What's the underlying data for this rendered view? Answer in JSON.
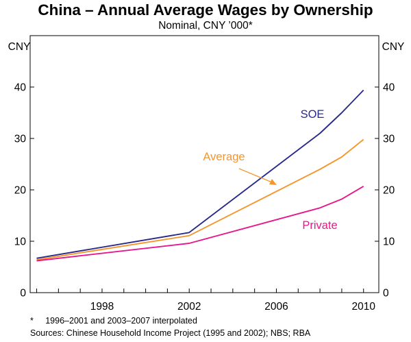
{
  "chart_data": {
    "type": "line",
    "title": "China – Annual Average Wages by Ownership",
    "subtitle": "Nominal, CNY ’000*",
    "ylabel_left": "CNY",
    "ylabel_right": "CNY",
    "xlim": [
      1994.7,
      2010.7
    ],
    "ylim": [
      0,
      50
    ],
    "x_ticks": [
      1998,
      2002,
      2006,
      2010
    ],
    "y_ticks": [
      0,
      10,
      20,
      30,
      40
    ],
    "gridlines": false,
    "series": [
      {
        "name": "SOE",
        "color": "#2a2a8a",
        "points": [
          [
            1995,
            6.7
          ],
          [
            2002,
            11.7
          ],
          [
            2008,
            31.0
          ],
          [
            2009,
            35.0
          ],
          [
            2010,
            39.4
          ]
        ]
      },
      {
        "name": "Average",
        "color": "#f4962d",
        "points": [
          [
            1995,
            6.4
          ],
          [
            2002,
            11.1
          ],
          [
            2008,
            24.0
          ],
          [
            2009,
            26.4
          ],
          [
            2010,
            29.8
          ]
        ]
      },
      {
        "name": "Private",
        "color": "#e6188c",
        "points": [
          [
            1995,
            6.2
          ],
          [
            2002,
            9.6
          ],
          [
            2008,
            16.5
          ],
          [
            2009,
            18.2
          ],
          [
            2010,
            20.7
          ]
        ]
      }
    ],
    "labels": {
      "soe": "SOE",
      "average": "Average",
      "private": "Private"
    },
    "notes": [
      "*     1996–2001 and 2003–2007 interpolated",
      "Sources: Chinese Household Income Project (1995 and 2002); NBS; RBA"
    ]
  }
}
